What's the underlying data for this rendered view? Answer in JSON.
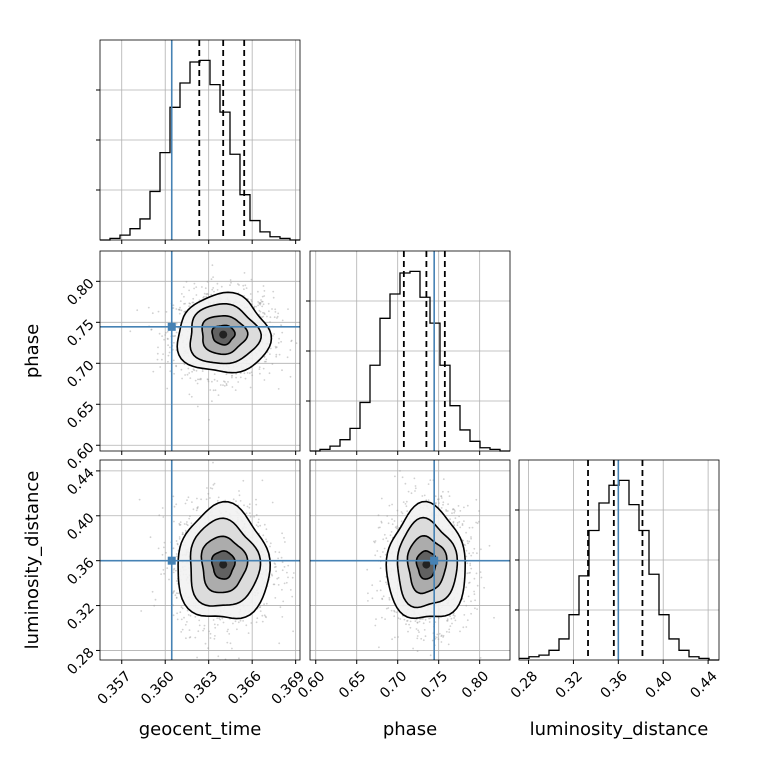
{
  "chart_data": {
    "type": "corner",
    "colors": {
      "truth": "#4682b4",
      "hist": "#000000",
      "grid": "#b0b0b0"
    },
    "parameters": [
      {
        "name": "geocent_time",
        "label": "geocent_time",
        "range": [
          0.3555,
          0.3693
        ],
        "ticks": [
          0.357,
          0.36,
          0.363,
          0.366,
          0.369
        ],
        "tick_labels": [
          "0.357",
          "0.360",
          "0.363",
          "0.366",
          "0.369"
        ],
        "truth": 0.36045,
        "quantiles": [
          0.36235,
          0.364,
          0.36545
        ]
      },
      {
        "name": "phase",
        "label": "phase",
        "range": [
          0.593,
          0.837
        ],
        "ticks": [
          0.6,
          0.65,
          0.7,
          0.75,
          0.8
        ],
        "tick_labels": [
          "0.60",
          "0.65",
          "0.70",
          "0.75",
          "0.80"
        ],
        "truth": 0.7445,
        "quantiles": [
          0.7075,
          0.735,
          0.7575
        ]
      },
      {
        "name": "luminosity_distance",
        "label": "luminosity_distance",
        "range": [
          0.2715,
          0.4497
        ],
        "ticks": [
          0.28,
          0.32,
          0.36,
          0.4,
          0.44
        ],
        "tick_labels": [
          "0.28",
          "0.32",
          "0.36",
          "0.40",
          "0.44"
        ],
        "truth": 0.36,
        "quantiles": [
          0.333,
          0.356,
          0.3815
        ]
      }
    ],
    "histograms": [
      {
        "param": "geocent_time",
        "counts": [
          0,
          1,
          3,
          7,
          13,
          30,
          54,
          82,
          97,
          110,
          111,
          96,
          79,
          53,
          28,
          12,
          5,
          2,
          1,
          0
        ]
      },
      {
        "param": "phase",
        "counts": [
          0,
          1,
          3,
          7,
          14,
          30,
          53,
          82,
          97,
          110,
          111,
          95,
          79,
          53,
          28,
          13,
          6,
          2,
          1,
          0
        ]
      },
      {
        "param": "luminosity_distance",
        "counts": [
          1,
          2,
          3,
          6,
          13,
          28,
          52,
          80,
          97,
          108,
          111,
          96,
          80,
          53,
          28,
          13,
          6,
          2,
          1,
          0
        ]
      }
    ],
    "joint": [
      {
        "x": "geocent_time",
        "y": "phase",
        "center": [
          0.364,
          0.735
        ],
        "sigma": [
          0.00155,
          0.0235
        ]
      },
      {
        "x": "geocent_time",
        "y": "luminosity_distance",
        "center": [
          0.364,
          0.3565
        ],
        "sigma": [
          0.00155,
          0.025
        ]
      },
      {
        "x": "phase",
        "y": "luminosity_distance",
        "center": [
          0.735,
          0.3565
        ],
        "sigma": [
          0.0235,
          0.025
        ]
      }
    ],
    "grid": true
  }
}
